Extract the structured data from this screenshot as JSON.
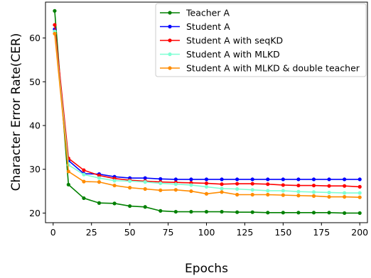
{
  "chart_data": {
    "type": "line",
    "xlabel": "Epochs",
    "ylabel": "Character Error Rate(CER)",
    "xlim": [
      -5,
      205
    ],
    "ylim": [
      17.8,
      68.2
    ],
    "xticks": [
      0,
      25,
      50,
      75,
      100,
      125,
      150,
      175,
      200
    ],
    "yticks": [
      20,
      30,
      40,
      50,
      60
    ],
    "legend_position": "top-right",
    "grid": false,
    "x": [
      1,
      10,
      20,
      30,
      40,
      50,
      60,
      70,
      80,
      90,
      100,
      110,
      120,
      130,
      140,
      150,
      160,
      170,
      180,
      190,
      200
    ],
    "series": [
      {
        "name": "Teacher A",
        "color": "#008000",
        "values": [
          66.2,
          26.5,
          23.4,
          22.3,
          22.2,
          21.6,
          21.4,
          20.5,
          20.3,
          20.3,
          20.3,
          20.3,
          20.2,
          20.2,
          20.1,
          20.1,
          20.1,
          20.1,
          20.1,
          20.0,
          20.0
        ]
      },
      {
        "name": "Student A",
        "color": "#0000ff",
        "values": [
          62.0,
          32.0,
          29.0,
          28.9,
          28.3,
          28.0,
          28.0,
          27.8,
          27.7,
          27.7,
          27.7,
          27.7,
          27.7,
          27.7,
          27.7,
          27.7,
          27.7,
          27.7,
          27.7,
          27.7,
          27.7
        ]
      },
      {
        "name": "Student A with seqKD",
        "color": "#ff0000",
        "values": [
          63.0,
          32.5,
          29.8,
          28.6,
          27.9,
          27.5,
          27.3,
          27.1,
          27.0,
          26.9,
          26.8,
          26.6,
          26.7,
          26.7,
          26.6,
          26.4,
          26.3,
          26.3,
          26.2,
          26.2,
          26.0
        ]
      },
      {
        "name": "Student A with MLKD",
        "color": "#7fffd4",
        "values": [
          61.5,
          31.0,
          28.8,
          28.0,
          27.4,
          27.3,
          27.1,
          26.8,
          26.6,
          26.4,
          26.0,
          25.6,
          25.5,
          25.3,
          25.1,
          25.1,
          24.9,
          24.8,
          24.7,
          24.6,
          24.6
        ]
      },
      {
        "name": "Student A with MLKD & double teacher",
        "color": "#ff8c00",
        "values": [
          61.0,
          29.5,
          27.2,
          27.1,
          26.3,
          25.8,
          25.5,
          25.2,
          25.3,
          25.0,
          24.4,
          24.8,
          24.2,
          24.2,
          24.2,
          24.1,
          24.0,
          23.9,
          23.7,
          23.7,
          23.6
        ]
      }
    ]
  }
}
